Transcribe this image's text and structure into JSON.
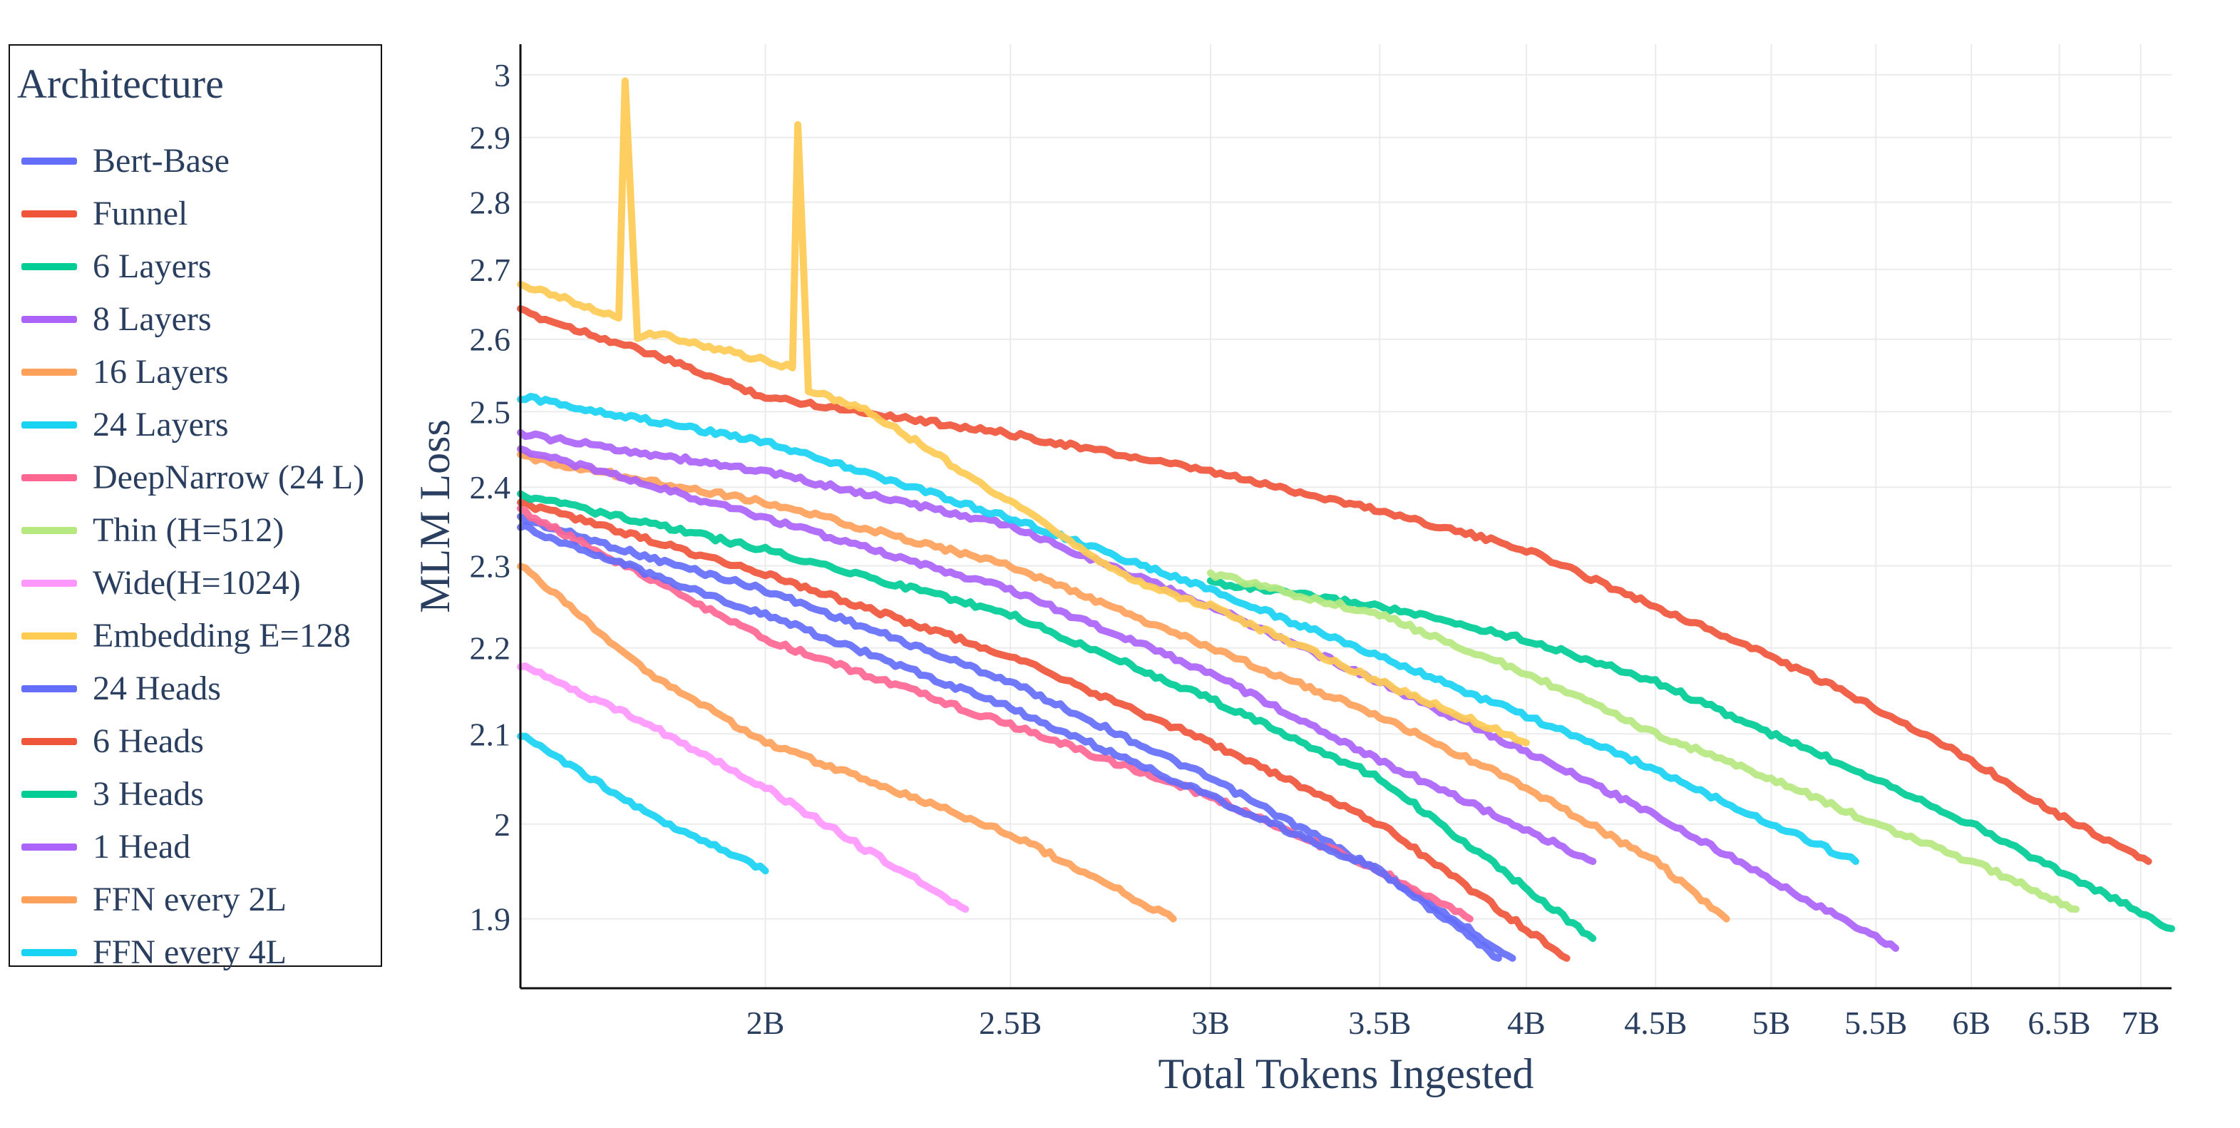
{
  "chart_data": {
    "type": "line",
    "xlabel": "Total Tokens Ingested",
    "ylabel": "MLM Loss",
    "x_scale": "log",
    "y_scale": "log",
    "xlim": [
      1.6,
      7.2
    ],
    "ylim": [
      1.83,
      3.05
    ],
    "x_ticks": [
      {
        "value": 2.0,
        "label": "2B"
      },
      {
        "value": 2.5,
        "label": "2.5B"
      },
      {
        "value": 3.0,
        "label": "3B"
      },
      {
        "value": 3.5,
        "label": "3.5B"
      },
      {
        "value": 4.0,
        "label": "4B"
      },
      {
        "value": 4.5,
        "label": "4.5B"
      },
      {
        "value": 5.0,
        "label": "5B"
      },
      {
        "value": 5.5,
        "label": "5.5B"
      },
      {
        "value": 6.0,
        "label": "6B"
      },
      {
        "value": 6.5,
        "label": "6.5B"
      },
      {
        "value": 7.0,
        "label": "7B"
      }
    ],
    "y_ticks": [
      {
        "value": 1.9,
        "label": "1.9"
      },
      {
        "value": 2.0,
        "label": "2"
      },
      {
        "value": 2.1,
        "label": "2.1"
      },
      {
        "value": 2.2,
        "label": "2.2"
      },
      {
        "value": 2.3,
        "label": "2.3"
      },
      {
        "value": 2.4,
        "label": "2.4"
      },
      {
        "value": 2.5,
        "label": "2.5"
      },
      {
        "value": 2.6,
        "label": "2.6"
      },
      {
        "value": 2.7,
        "label": "2.7"
      },
      {
        "value": 2.8,
        "label": "2.8"
      },
      {
        "value": 2.9,
        "label": "2.9"
      },
      {
        "value": 3.0,
        "label": "3"
      }
    ],
    "grid": true,
    "legend_title": "Architecture",
    "legend_position": "left",
    "series": [
      {
        "name": "Bert-Base",
        "color": "#636efa",
        "x": [
          1.6,
          1.8,
          2.0,
          2.5,
          3.0,
          3.5,
          3.95
        ],
        "y": [
          2.36,
          2.31,
          2.27,
          2.16,
          2.05,
          1.95,
          1.86
        ]
      },
      {
        "name": "Funnel",
        "color": "#ef553b",
        "x": [
          1.6,
          1.8,
          2.0,
          2.5,
          3.0,
          3.5,
          4.0,
          4.5,
          5.0,
          5.5,
          6.0,
          6.5,
          7.05
        ],
        "y": [
          2.64,
          2.58,
          2.52,
          2.47,
          2.42,
          2.37,
          2.32,
          2.25,
          2.19,
          2.13,
          2.07,
          2.01,
          1.96
        ]
      },
      {
        "name": "6 Layers",
        "color": "#00cc96",
        "x": [
          3.0,
          3.5,
          4.0,
          4.5,
          5.0,
          5.5,
          6.0,
          6.5,
          7.2
        ],
        "y": [
          2.28,
          2.25,
          2.21,
          2.16,
          2.1,
          2.05,
          2.0,
          1.95,
          1.89
        ]
      },
      {
        "name": "8 Layers",
        "color": "#ab63fa",
        "x": [
          1.6,
          2.0,
          2.5,
          3.0,
          3.5,
          4.0,
          4.5,
          5.0,
          5.6
        ],
        "y": [
          2.47,
          2.42,
          2.35,
          2.25,
          2.16,
          2.08,
          2.01,
          1.94,
          1.87
        ]
      },
      {
        "name": "16 Layers",
        "color": "#ffa15a",
        "x": [
          1.6,
          2.0,
          2.5,
          3.0,
          3.5,
          4.0,
          4.5,
          4.8
        ],
        "y": [
          2.44,
          2.38,
          2.3,
          2.2,
          2.12,
          2.04,
          1.96,
          1.9
        ]
      },
      {
        "name": "24 Layers",
        "color": "#19d3f3",
        "x": [
          1.6,
          2.0,
          2.5,
          3.0,
          3.5,
          4.0,
          4.5,
          5.0,
          5.4
        ],
        "y": [
          2.52,
          2.46,
          2.36,
          2.27,
          2.19,
          2.12,
          2.06,
          2.0,
          1.96
        ]
      },
      {
        "name": "DeepNarrow (24 L)",
        "color": "#ff6692",
        "x": [
          1.6,
          2.0,
          2.5,
          3.0,
          3.5,
          3.8
        ],
        "y": [
          2.37,
          2.21,
          2.11,
          2.03,
          1.95,
          1.9
        ]
      },
      {
        "name": "Thin (H=512)",
        "color": "#b6e880",
        "x": [
          3.0,
          3.5,
          4.0,
          4.5,
          5.0,
          5.5,
          6.0,
          6.6
        ],
        "y": [
          2.29,
          2.24,
          2.17,
          2.1,
          2.05,
          2.0,
          1.96,
          1.91
        ]
      },
      {
        "name": "Wide(H=1024)",
        "color": "#ff97ff",
        "x": [
          1.6,
          1.8,
          2.0,
          2.2,
          2.4
        ],
        "y": [
          2.18,
          2.11,
          2.04,
          1.97,
          1.91
        ]
      },
      {
        "name": "Embedding E=128",
        "color": "#fecb52",
        "x": [
          1.6,
          1.75,
          1.76,
          1.78,
          1.8,
          1.9,
          2.0,
          2.05,
          2.06,
          2.08,
          2.2,
          2.5,
          2.8,
          3.0,
          3.5,
          4.0
        ],
        "y": [
          2.68,
          2.63,
          2.99,
          2.6,
          2.61,
          2.59,
          2.57,
          2.56,
          2.92,
          2.53,
          2.5,
          2.38,
          2.28,
          2.25,
          2.16,
          2.09
        ]
      },
      {
        "name": "24 Heads",
        "color": "#636efa",
        "x": [
          1.6,
          1.8,
          2.0,
          2.5,
          3.0,
          3.5,
          3.9
        ],
        "y": [
          2.35,
          2.29,
          2.24,
          2.13,
          2.03,
          1.95,
          1.86
        ]
      },
      {
        "name": "6 Heads",
        "color": "#ef553b",
        "x": [
          1.6,
          2.0,
          2.5,
          3.0,
          3.5,
          4.15
        ],
        "y": [
          2.38,
          2.29,
          2.19,
          2.09,
          2.0,
          1.86
        ]
      },
      {
        "name": "3 Heads",
        "color": "#00cc96",
        "x": [
          1.6,
          2.0,
          2.5,
          3.0,
          3.5,
          4.25
        ],
        "y": [
          2.39,
          2.32,
          2.24,
          2.14,
          2.05,
          1.88
        ]
      },
      {
        "name": "1 Head",
        "color": "#ab63fa",
        "x": [
          1.6,
          2.0,
          2.5,
          3.0,
          3.5,
          4.25
        ],
        "y": [
          2.45,
          2.36,
          2.27,
          2.17,
          2.07,
          1.96
        ]
      },
      {
        "name": "FFN every 2L",
        "color": "#ffa15a",
        "x": [
          1.6,
          1.8,
          2.0,
          2.5,
          2.9
        ],
        "y": [
          2.3,
          2.17,
          2.09,
          1.99,
          1.9
        ]
      },
      {
        "name": "FFN every 4L",
        "color": "#19d3f3",
        "x": [
          1.6,
          1.8,
          2.0
        ],
        "y": [
          2.1,
          2.01,
          1.95
        ]
      }
    ]
  }
}
